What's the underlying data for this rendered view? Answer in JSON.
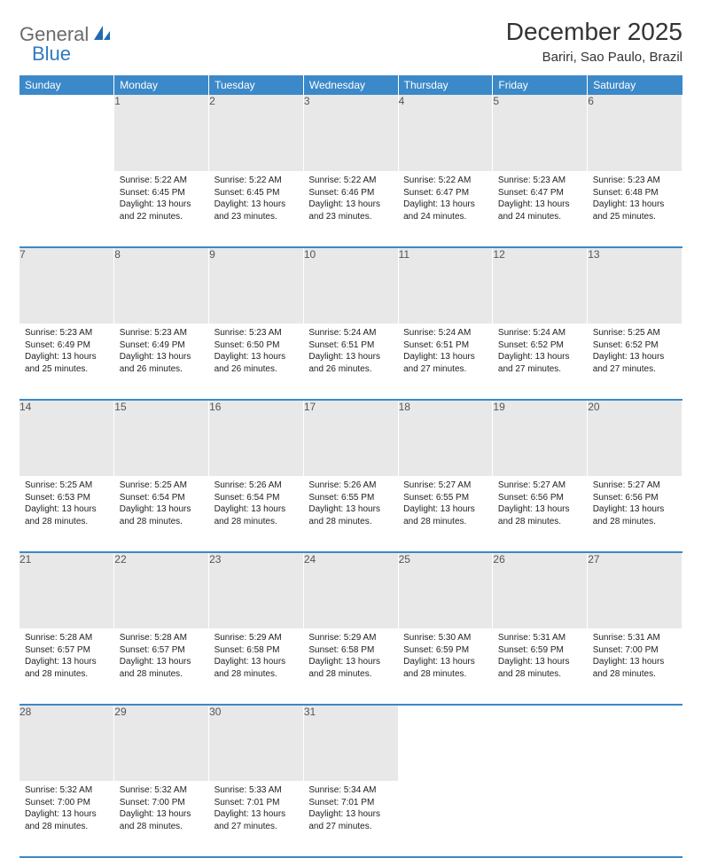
{
  "brand": {
    "part1": "General",
    "part2": "Blue"
  },
  "title": "December 2025",
  "location": "Bariri, Sao Paulo, Brazil",
  "colors": {
    "header_bg": "#3b89c9",
    "header_text": "#ffffff",
    "daynum_bg": "#e8e8e8",
    "daynum_text": "#555555",
    "body_text": "#222222",
    "brand_gray": "#6b6b6b",
    "brand_blue": "#2f7bbf",
    "border_blue": "#3b89c9"
  },
  "weekdays": [
    "Sunday",
    "Monday",
    "Tuesday",
    "Wednesday",
    "Thursday",
    "Friday",
    "Saturday"
  ],
  "weeks": [
    [
      {
        "n": "",
        "sr": "",
        "ss": "",
        "dl": ""
      },
      {
        "n": "1",
        "sr": "Sunrise: 5:22 AM",
        "ss": "Sunset: 6:45 PM",
        "dl": "Daylight: 13 hours and 22 minutes."
      },
      {
        "n": "2",
        "sr": "Sunrise: 5:22 AM",
        "ss": "Sunset: 6:45 PM",
        "dl": "Daylight: 13 hours and 23 minutes."
      },
      {
        "n": "3",
        "sr": "Sunrise: 5:22 AM",
        "ss": "Sunset: 6:46 PM",
        "dl": "Daylight: 13 hours and 23 minutes."
      },
      {
        "n": "4",
        "sr": "Sunrise: 5:22 AM",
        "ss": "Sunset: 6:47 PM",
        "dl": "Daylight: 13 hours and 24 minutes."
      },
      {
        "n": "5",
        "sr": "Sunrise: 5:23 AM",
        "ss": "Sunset: 6:47 PM",
        "dl": "Daylight: 13 hours and 24 minutes."
      },
      {
        "n": "6",
        "sr": "Sunrise: 5:23 AM",
        "ss": "Sunset: 6:48 PM",
        "dl": "Daylight: 13 hours and 25 minutes."
      }
    ],
    [
      {
        "n": "7",
        "sr": "Sunrise: 5:23 AM",
        "ss": "Sunset: 6:49 PM",
        "dl": "Daylight: 13 hours and 25 minutes."
      },
      {
        "n": "8",
        "sr": "Sunrise: 5:23 AM",
        "ss": "Sunset: 6:49 PM",
        "dl": "Daylight: 13 hours and 26 minutes."
      },
      {
        "n": "9",
        "sr": "Sunrise: 5:23 AM",
        "ss": "Sunset: 6:50 PM",
        "dl": "Daylight: 13 hours and 26 minutes."
      },
      {
        "n": "10",
        "sr": "Sunrise: 5:24 AM",
        "ss": "Sunset: 6:51 PM",
        "dl": "Daylight: 13 hours and 26 minutes."
      },
      {
        "n": "11",
        "sr": "Sunrise: 5:24 AM",
        "ss": "Sunset: 6:51 PM",
        "dl": "Daylight: 13 hours and 27 minutes."
      },
      {
        "n": "12",
        "sr": "Sunrise: 5:24 AM",
        "ss": "Sunset: 6:52 PM",
        "dl": "Daylight: 13 hours and 27 minutes."
      },
      {
        "n": "13",
        "sr": "Sunrise: 5:25 AM",
        "ss": "Sunset: 6:52 PM",
        "dl": "Daylight: 13 hours and 27 minutes."
      }
    ],
    [
      {
        "n": "14",
        "sr": "Sunrise: 5:25 AM",
        "ss": "Sunset: 6:53 PM",
        "dl": "Daylight: 13 hours and 28 minutes."
      },
      {
        "n": "15",
        "sr": "Sunrise: 5:25 AM",
        "ss": "Sunset: 6:54 PM",
        "dl": "Daylight: 13 hours and 28 minutes."
      },
      {
        "n": "16",
        "sr": "Sunrise: 5:26 AM",
        "ss": "Sunset: 6:54 PM",
        "dl": "Daylight: 13 hours and 28 minutes."
      },
      {
        "n": "17",
        "sr": "Sunrise: 5:26 AM",
        "ss": "Sunset: 6:55 PM",
        "dl": "Daylight: 13 hours and 28 minutes."
      },
      {
        "n": "18",
        "sr": "Sunrise: 5:27 AM",
        "ss": "Sunset: 6:55 PM",
        "dl": "Daylight: 13 hours and 28 minutes."
      },
      {
        "n": "19",
        "sr": "Sunrise: 5:27 AM",
        "ss": "Sunset: 6:56 PM",
        "dl": "Daylight: 13 hours and 28 minutes."
      },
      {
        "n": "20",
        "sr": "Sunrise: 5:27 AM",
        "ss": "Sunset: 6:56 PM",
        "dl": "Daylight: 13 hours and 28 minutes."
      }
    ],
    [
      {
        "n": "21",
        "sr": "Sunrise: 5:28 AM",
        "ss": "Sunset: 6:57 PM",
        "dl": "Daylight: 13 hours and 28 minutes."
      },
      {
        "n": "22",
        "sr": "Sunrise: 5:28 AM",
        "ss": "Sunset: 6:57 PM",
        "dl": "Daylight: 13 hours and 28 minutes."
      },
      {
        "n": "23",
        "sr": "Sunrise: 5:29 AM",
        "ss": "Sunset: 6:58 PM",
        "dl": "Daylight: 13 hours and 28 minutes."
      },
      {
        "n": "24",
        "sr": "Sunrise: 5:29 AM",
        "ss": "Sunset: 6:58 PM",
        "dl": "Daylight: 13 hours and 28 minutes."
      },
      {
        "n": "25",
        "sr": "Sunrise: 5:30 AM",
        "ss": "Sunset: 6:59 PM",
        "dl": "Daylight: 13 hours and 28 minutes."
      },
      {
        "n": "26",
        "sr": "Sunrise: 5:31 AM",
        "ss": "Sunset: 6:59 PM",
        "dl": "Daylight: 13 hours and 28 minutes."
      },
      {
        "n": "27",
        "sr": "Sunrise: 5:31 AM",
        "ss": "Sunset: 7:00 PM",
        "dl": "Daylight: 13 hours and 28 minutes."
      }
    ],
    [
      {
        "n": "28",
        "sr": "Sunrise: 5:32 AM",
        "ss": "Sunset: 7:00 PM",
        "dl": "Daylight: 13 hours and 28 minutes."
      },
      {
        "n": "29",
        "sr": "Sunrise: 5:32 AM",
        "ss": "Sunset: 7:00 PM",
        "dl": "Daylight: 13 hours and 28 minutes."
      },
      {
        "n": "30",
        "sr": "Sunrise: 5:33 AM",
        "ss": "Sunset: 7:01 PM",
        "dl": "Daylight: 13 hours and 27 minutes."
      },
      {
        "n": "31",
        "sr": "Sunrise: 5:34 AM",
        "ss": "Sunset: 7:01 PM",
        "dl": "Daylight: 13 hours and 27 minutes."
      },
      {
        "n": "",
        "sr": "",
        "ss": "",
        "dl": ""
      },
      {
        "n": "",
        "sr": "",
        "ss": "",
        "dl": ""
      },
      {
        "n": "",
        "sr": "",
        "ss": "",
        "dl": ""
      }
    ]
  ]
}
